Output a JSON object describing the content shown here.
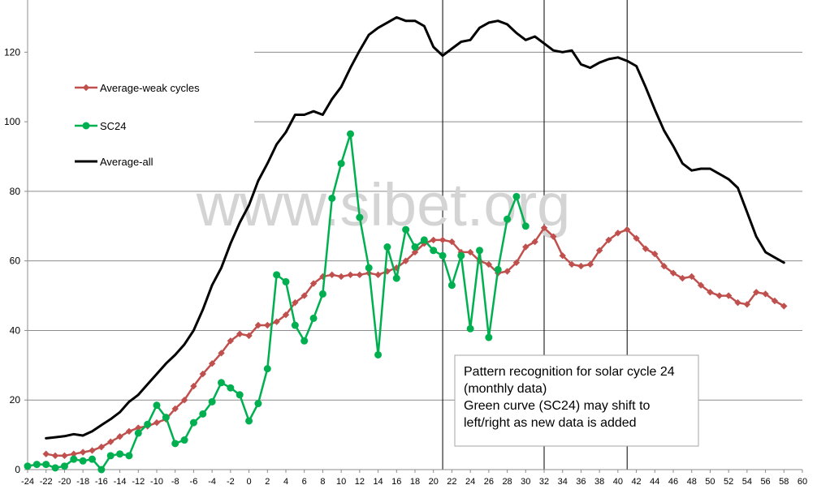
{
  "chart_data": {
    "type": "line",
    "watermark": "www.sibet.org",
    "xlim": [
      -24,
      60
    ],
    "ylim": [
      0,
      135
    ],
    "x_ticks": [
      -24,
      -22,
      -20,
      -18,
      -16,
      -14,
      -12,
      -10,
      -8,
      -6,
      -4,
      -2,
      0,
      2,
      4,
      6,
      8,
      10,
      12,
      14,
      16,
      18,
      20,
      22,
      24,
      26,
      28,
      30,
      32,
      34,
      36,
      38,
      40,
      42,
      44,
      46,
      48,
      50,
      52,
      54,
      56,
      58,
      60
    ],
    "y_ticks": [
      0,
      20,
      40,
      60,
      80,
      100,
      120
    ],
    "vertical_lines": [
      21,
      32,
      41
    ],
    "grid": "horizontal",
    "legend_position": "top-left",
    "annotation": {
      "lines": [
        "Pattern recognition for solar cycle 24",
        "(monthly data)",
        "Green curve (SC24) may shift to",
        "left/right as new data is added"
      ]
    },
    "series": [
      {
        "name": "Average-weak cycles",
        "color": "#c0504d",
        "marker": "diamond",
        "x": [
          -22,
          -21,
          -20,
          -19,
          -18,
          -17,
          -16,
          -15,
          -14,
          -13,
          -12,
          -11,
          -10,
          -9,
          -8,
          -7,
          -6,
          -5,
          -4,
          -3,
          -2,
          -1,
          0,
          1,
          2,
          3,
          4,
          5,
          6,
          7,
          8,
          9,
          10,
          11,
          12,
          13,
          14,
          15,
          16,
          17,
          18,
          19,
          20,
          21,
          22,
          23,
          24,
          25,
          26,
          27,
          28,
          29,
          30,
          31,
          32,
          33,
          34,
          35,
          36,
          37,
          38,
          39,
          40,
          41,
          42,
          43,
          44,
          45,
          46,
          47,
          48,
          49,
          50,
          51,
          52,
          53,
          54,
          55,
          56,
          57,
          58
        ],
        "y": [
          4.5,
          4,
          4,
          4.5,
          5,
          5.5,
          6.5,
          8,
          9.5,
          11,
          12,
          12.5,
          13.5,
          14.5,
          17.5,
          20,
          24,
          27.5,
          30.5,
          33.5,
          37,
          39,
          38.5,
          41.5,
          41.5,
          42.5,
          44.5,
          48,
          50,
          53.5,
          55.5,
          56,
          55.5,
          56,
          56,
          56.5,
          56,
          57,
          58,
          60,
          62.5,
          65,
          66,
          66,
          65.5,
          62.5,
          62.5,
          60,
          59,
          56.5,
          57,
          59.5,
          64,
          65.5,
          69.5,
          67,
          61.5,
          59,
          58.5,
          59,
          63,
          66,
          68,
          69,
          66.5,
          63.5,
          62,
          58.5,
          56.5,
          55,
          55.5,
          53,
          51,
          50,
          50,
          48,
          47.5,
          51,
          50.5,
          48.5,
          47
        ]
      },
      {
        "name": "SC24",
        "color": "#00b050",
        "marker": "circle",
        "x": [
          -24,
          -23,
          -22,
          -21,
          -20,
          -19,
          -18,
          -17,
          -16,
          -15,
          -14,
          -13,
          -12,
          -11,
          -10,
          -9,
          -8,
          -7,
          -6,
          -5,
          -4,
          -3,
          -2,
          -1,
          0,
          1,
          2,
          3,
          4,
          5,
          6,
          7,
          8,
          9,
          10,
          11,
          12,
          13,
          14,
          15,
          16,
          17,
          18,
          19,
          20,
          21,
          22,
          23,
          24,
          25,
          26,
          27,
          28,
          29,
          30
        ],
        "y": [
          1,
          1.5,
          1.5,
          0.5,
          1,
          3,
          2.5,
          3,
          0,
          4,
          4.5,
          4,
          10.5,
          13,
          18.5,
          15,
          7.5,
          8.5,
          13.5,
          16,
          19.5,
          25,
          23.5,
          21.5,
          14,
          19,
          29,
          56,
          54,
          41.5,
          37,
          43.5,
          50.5,
          78,
          88,
          96.5,
          72.5,
          58,
          33,
          64,
          55,
          69,
          64,
          66,
          63,
          61.5,
          53,
          61.5,
          40.5,
          63,
          38,
          57.5,
          72,
          78.5,
          70
        ]
      },
      {
        "name": "Average-all",
        "color": "#000000",
        "marker": "none",
        "x": [
          -22,
          -21,
          -20,
          -19,
          -18,
          -17,
          -16,
          -15,
          -14,
          -13,
          -12,
          -11,
          -10,
          -9,
          -8,
          -7,
          -6,
          -5,
          -4,
          -3,
          -2,
          -1,
          0,
          1,
          2,
          3,
          4,
          5,
          6,
          7,
          8,
          9,
          10,
          11,
          12,
          13,
          14,
          15,
          16,
          17,
          18,
          19,
          20,
          21,
          22,
          23,
          24,
          25,
          26,
          27,
          28,
          29,
          30,
          31,
          32,
          33,
          34,
          35,
          36,
          37,
          38,
          39,
          40,
          41,
          42,
          43,
          44,
          45,
          46,
          47,
          48,
          49,
          50,
          51,
          52,
          53,
          54,
          55,
          56,
          57,
          58
        ],
        "y": [
          9,
          9.3,
          9.6,
          10.2,
          9.8,
          11,
          12.8,
          14.5,
          16.5,
          19.5,
          21.5,
          24.5,
          27.5,
          30.5,
          33,
          36,
          40,
          46,
          53,
          58,
          65,
          71,
          76,
          83,
          88,
          93.5,
          97,
          102,
          102,
          103,
          102,
          106.5,
          110,
          115.5,
          120.5,
          125,
          127,
          128.5,
          130,
          129,
          129,
          127.5,
          121.5,
          119,
          121,
          123,
          123.5,
          127,
          128.5,
          129,
          128,
          125.5,
          123.5,
          124.5,
          122.5,
          120.5,
          120,
          120.5,
          116.5,
          115.5,
          117,
          118,
          118.5,
          117.5,
          116,
          110,
          103.5,
          97.5,
          93,
          88,
          86,
          86.5,
          86.5,
          85,
          83.5,
          81,
          74,
          67,
          62.5,
          61,
          59.5
        ]
      }
    ]
  }
}
